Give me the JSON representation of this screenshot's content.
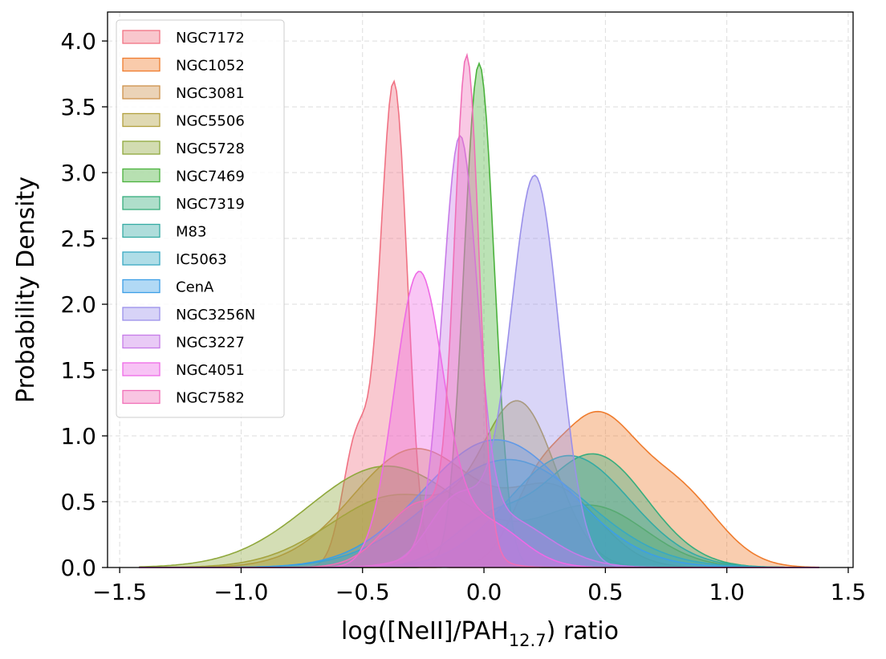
{
  "chart_data": {
    "type": "area",
    "subtype": "kde-density",
    "title": "",
    "xlabel": {
      "prefix": "log([NeII]/PAH",
      "subscript": "12.7",
      "suffix": ") ratio"
    },
    "ylabel": "Probability Density",
    "xlim": [
      -1.55,
      1.52
    ],
    "ylim": [
      0,
      4.22
    ],
    "xticks": [
      -1.5,
      -1.0,
      -0.5,
      0.0,
      0.5,
      1.0,
      1.5
    ],
    "xtick_labels": [
      "−1.5",
      "−1.0",
      "−0.5",
      "0.0",
      "0.5",
      "1.0",
      "1.5"
    ],
    "yticks": [
      0.0,
      0.5,
      1.0,
      1.5,
      2.0,
      2.5,
      3.0,
      3.5,
      4.0
    ],
    "ytick_labels": [
      "0.0",
      "0.5",
      "1.0",
      "1.5",
      "2.0",
      "2.5",
      "3.0",
      "3.5",
      "4.0"
    ],
    "grid": true,
    "legend_position": "top-left",
    "series": [
      {
        "name": "NGC7172",
        "color": "#f07283",
        "peaks": [
          [
            -0.37,
            3.65,
            0.055
          ],
          [
            -0.52,
            1.0,
            0.06
          ]
        ]
      },
      {
        "name": "NGC1052",
        "color": "#ef7c2e",
        "peaks": [
          [
            0.45,
            1.1,
            0.17
          ],
          [
            0.8,
            0.55,
            0.17
          ],
          [
            0.2,
            0.35,
            0.1
          ]
        ]
      },
      {
        "name": "NGC3081",
        "color": "#cd914a",
        "peaks": [
          [
            -0.28,
            0.9,
            0.26
          ],
          [
            0.3,
            0.55,
            0.18
          ]
        ]
      },
      {
        "name": "NGC5506",
        "color": "#b2a03e",
        "peaks": [
          [
            0.15,
            1.15,
            0.15
          ],
          [
            -0.35,
            0.55,
            0.28
          ]
        ]
      },
      {
        "name": "NGC5728",
        "color": "#8fa83c",
        "peaks": [
          [
            -0.4,
            0.77,
            0.32
          ],
          [
            0.45,
            0.45,
            0.22
          ]
        ]
      },
      {
        "name": "NGC7469",
        "color": "#4bb23d",
        "peaks": [
          [
            -0.02,
            3.83,
            0.062
          ]
        ]
      },
      {
        "name": "NGC7319",
        "color": "#37ad7e",
        "peaks": [
          [
            0.45,
            0.86,
            0.22
          ],
          [
            0.0,
            0.3,
            0.15
          ]
        ]
      },
      {
        "name": "M83",
        "color": "#35aba4",
        "peaks": [
          [
            0.35,
            0.85,
            0.25
          ]
        ]
      },
      {
        "name": "IC5063",
        "color": "#38a9c2",
        "peaks": [
          [
            0.1,
            0.82,
            0.32
          ]
        ]
      },
      {
        "name": "CenA",
        "color": "#3c9fe6",
        "peaks": [
          [
            0.05,
            0.97,
            0.3
          ]
        ]
      },
      {
        "name": "NGC3256N",
        "color": "#9a90ea",
        "peaks": [
          [
            0.21,
            2.96,
            0.1
          ],
          [
            -0.1,
            0.55,
            0.12
          ]
        ]
      },
      {
        "name": "NGC3227",
        "color": "#c77be8",
        "peaks": [
          [
            -0.1,
            2.98,
            0.07
          ],
          [
            0.05,
            0.4,
            0.2
          ]
        ]
      },
      {
        "name": "NGC4051",
        "color": "#ee6ae6",
        "peaks": [
          [
            -0.27,
            2.18,
            0.1
          ],
          [
            0.0,
            0.35,
            0.15
          ]
        ]
      },
      {
        "name": "NGC7582",
        "color": "#f06fb7",
        "peaks": [
          [
            -0.07,
            3.65,
            0.05
          ],
          [
            -0.25,
            0.5,
            0.15
          ]
        ]
      }
    ]
  }
}
